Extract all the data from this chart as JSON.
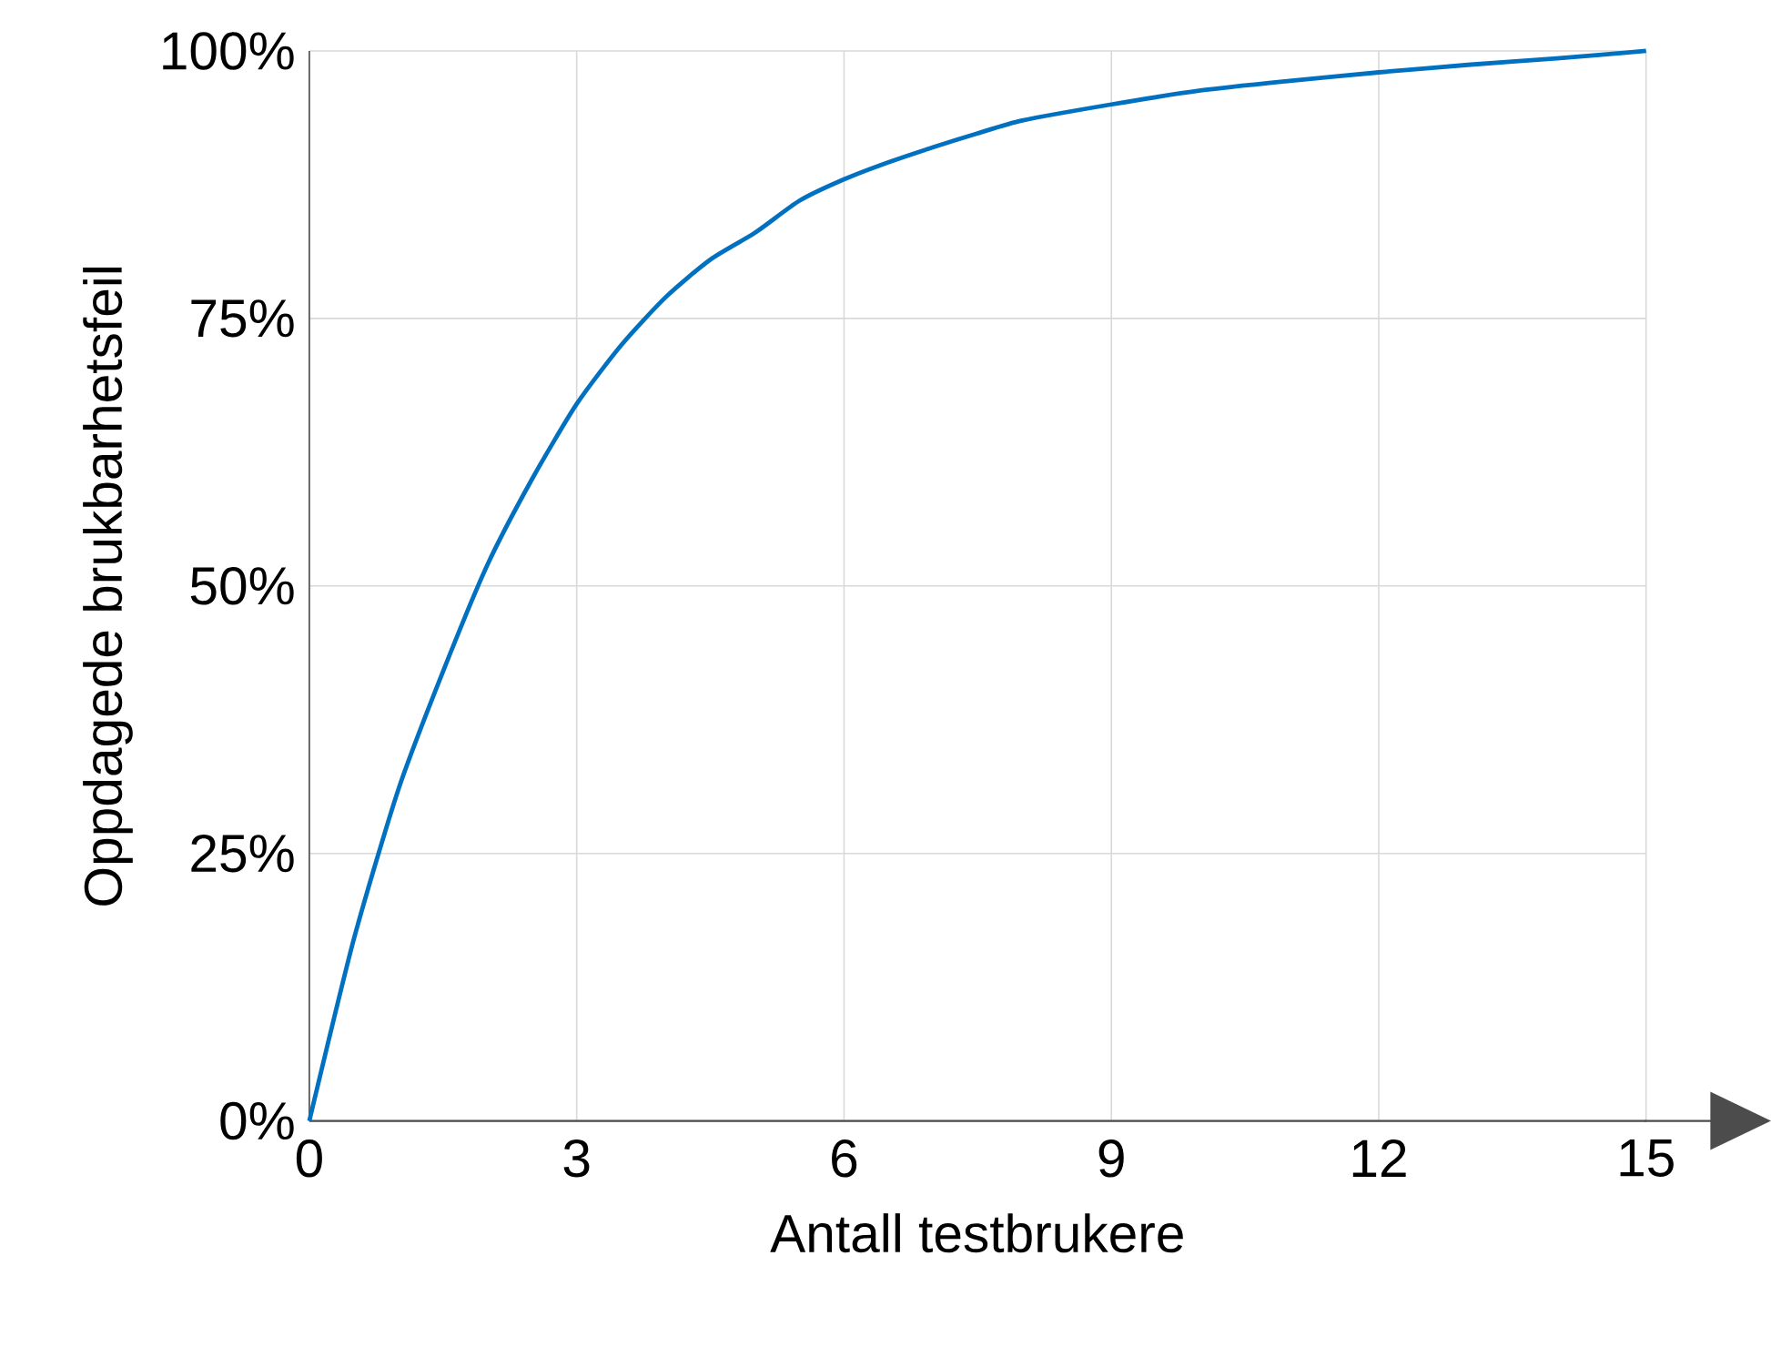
{
  "chart_data": {
    "type": "line",
    "xlabel": "Antall testbrukere",
    "ylabel": "Oppdagede brukbarhetsfeil",
    "x": [
      0,
      0.5,
      1,
      1.5,
      2,
      2.5,
      3,
      3.5,
      4,
      4.5,
      5,
      5.5,
      6,
      6.5,
      7,
      7.5,
      8,
      9,
      10,
      11,
      12,
      13,
      14,
      15
    ],
    "series": [
      {
        "color": "#0070c0",
        "values": [
          0,
          17,
          31,
          42,
          52,
          60,
          67,
          72.5,
          77,
          80.5,
          83,
          86,
          88,
          89.6,
          91,
          92.3,
          93.5,
          95,
          96.3,
          97.2,
          98,
          98.7,
          99.3,
          100
        ]
      }
    ],
    "xlim": [
      0,
      15
    ],
    "ylim": [
      0,
      100
    ],
    "xticks": [
      0,
      3,
      6,
      9,
      12,
      15
    ],
    "yticks": [
      {
        "value": 0,
        "label": "0%"
      },
      {
        "value": 25,
        "label": "25%"
      },
      {
        "value": 50,
        "label": "50%"
      },
      {
        "value": 75,
        "label": "75%"
      },
      {
        "value": 100,
        "label": "100%"
      }
    ],
    "grid": true,
    "marker": "none",
    "line_style": "solid"
  }
}
